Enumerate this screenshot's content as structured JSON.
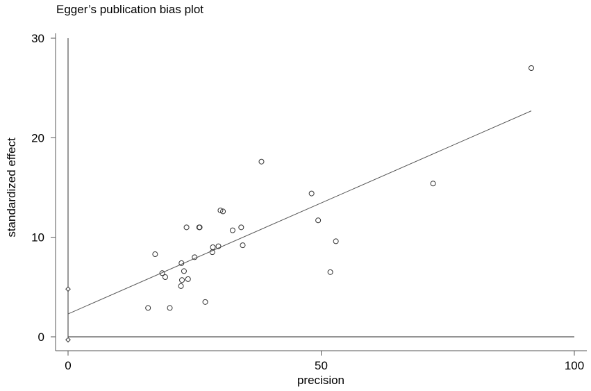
{
  "chart_data": {
    "type": "scatter",
    "title": "Egger’s publication bias plot",
    "xlabel": "precision",
    "ylabel": "standardized effect",
    "xlim": [
      0,
      100
    ],
    "ylim": [
      0,
      30
    ],
    "xticks": [
      0,
      50,
      100
    ],
    "yticks": [
      0,
      10,
      20,
      30
    ],
    "grid": false,
    "points": [
      {
        "x": 15.8,
        "y": 2.9
      },
      {
        "x": 17.2,
        "y": 8.3
      },
      {
        "x": 18.6,
        "y": 6.4
      },
      {
        "x": 19.2,
        "y": 6.0
      },
      {
        "x": 20.1,
        "y": 2.9
      },
      {
        "x": 22.3,
        "y": 5.1
      },
      {
        "x": 22.4,
        "y": 7.4
      },
      {
        "x": 22.5,
        "y": 5.7
      },
      {
        "x": 22.9,
        "y": 6.6
      },
      {
        "x": 23.4,
        "y": 11.0
      },
      {
        "x": 23.7,
        "y": 5.8
      },
      {
        "x": 25.0,
        "y": 8.0
      },
      {
        "x": 25.9,
        "y": 11.0
      },
      {
        "x": 26.0,
        "y": 11.0
      },
      {
        "x": 27.1,
        "y": 3.5
      },
      {
        "x": 28.5,
        "y": 8.5
      },
      {
        "x": 28.6,
        "y": 9.0
      },
      {
        "x": 29.7,
        "y": 9.1
      },
      {
        "x": 30.1,
        "y": 12.7
      },
      {
        "x": 30.6,
        "y": 12.6
      },
      {
        "x": 32.5,
        "y": 10.7
      },
      {
        "x": 34.2,
        "y": 11.0
      },
      {
        "x": 34.5,
        "y": 9.2
      },
      {
        "x": 38.2,
        "y": 17.6
      },
      {
        "x": 48.1,
        "y": 14.4
      },
      {
        "x": 49.4,
        "y": 11.7
      },
      {
        "x": 51.8,
        "y": 6.5
      },
      {
        "x": 52.9,
        "y": 9.6
      },
      {
        "x": 72.1,
        "y": 15.4
      },
      {
        "x": 91.5,
        "y": 27.0
      }
    ],
    "fit_line": {
      "x": [
        0,
        91.5
      ],
      "y": [
        2.3,
        22.7
      ]
    },
    "intercept_ci": {
      "x": 0,
      "y": [
        -0.3,
        4.8
      ]
    },
    "reference_line_y": 0
  }
}
